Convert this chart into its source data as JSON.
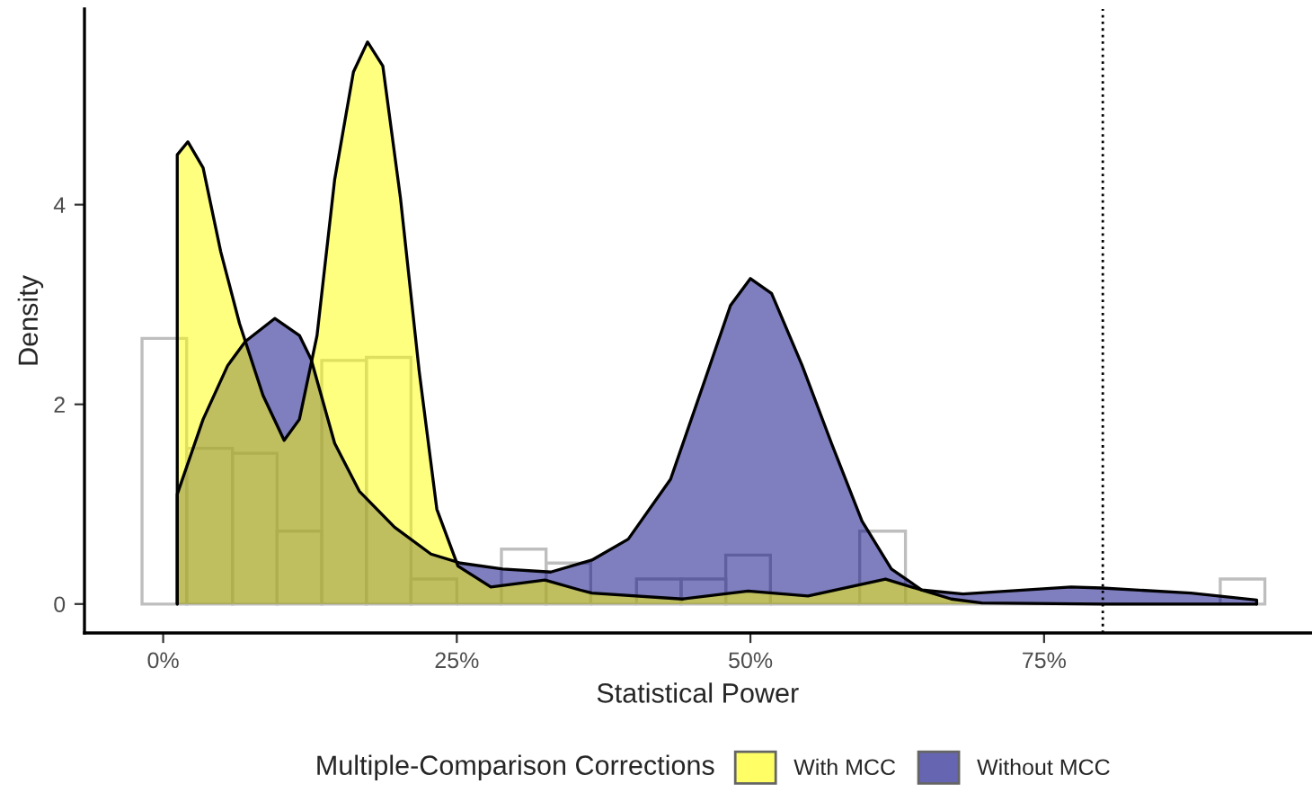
{
  "chart_data": {
    "type": "area",
    "xlabel": "Statistical Power",
    "ylabel": "Density",
    "legend_title": "Multiple-Comparison Corrections",
    "xlim": [
      -0.067,
      0.977
    ],
    "ylim": [
      -0.29,
      5.96
    ],
    "xticks": [
      {
        "value": 0,
        "label": "0%"
      },
      {
        "value": 0.25,
        "label": "25%"
      },
      {
        "value": 0.5,
        "label": "50%"
      },
      {
        "value": 0.75,
        "label": "75%"
      }
    ],
    "yticks": [
      0,
      2,
      4
    ],
    "grid": false,
    "legend": "bottom",
    "series": [
      {
        "type": "histogram",
        "color": "#bebebe",
        "bins": [
          -0.018,
          0.02,
          0.059,
          0.097,
          0.135,
          0.173,
          0.211,
          0.25,
          0.288,
          0.326,
          0.364,
          0.403,
          0.441,
          0.479,
          0.517,
          0.555,
          0.593,
          0.632,
          0.67,
          0.708,
          0.746,
          0.785,
          0.823,
          0.861,
          0.9,
          0.938
        ],
        "values": [
          2.66,
          1.56,
          1.51,
          0.73,
          2.44,
          2.47,
          0.25,
          0,
          0.55,
          0.41,
          0,
          0.25,
          0.25,
          0.49,
          0,
          0,
          0.73,
          0,
          0,
          0,
          0,
          0,
          0,
          0,
          0.25
        ]
      },
      {
        "name": "Without MCC",
        "color": "#000080",
        "x": [
          0.012,
          0.034,
          0.055,
          0.07,
          0.095,
          0.116,
          0.126,
          0.146,
          0.167,
          0.197,
          0.228,
          0.253,
          0.289,
          0.33,
          0.365,
          0.396,
          0.432,
          0.462,
          0.483,
          0.5,
          0.518,
          0.544,
          0.569,
          0.595,
          0.62,
          0.646,
          0.681,
          0.773,
          0.799,
          0.875,
          0.931
        ],
        "values": [
          1.1,
          1.85,
          2.39,
          2.63,
          2.86,
          2.69,
          2.45,
          1.61,
          1.13,
          0.77,
          0.5,
          0.41,
          0.35,
          0.32,
          0.44,
          0.65,
          1.25,
          2.27,
          2.99,
          3.26,
          3.11,
          2.39,
          1.61,
          0.83,
          0.35,
          0.14,
          0.1,
          0.17,
          0.16,
          0.11,
          0.04
        ]
      },
      {
        "name": "With MCC",
        "color": "#ffff00",
        "x": [
          0.012,
          0.021,
          0.034,
          0.049,
          0.065,
          0.085,
          0.103,
          0.116,
          0.131,
          0.146,
          0.162,
          0.174,
          0.187,
          0.202,
          0.218,
          0.233,
          0.251,
          0.279,
          0.325,
          0.355,
          0.365,
          0.442,
          0.498,
          0.549,
          0.615,
          0.671,
          0.697,
          0.8,
          0.931
        ],
        "values": [
          4.5,
          4.63,
          4.37,
          3.53,
          2.81,
          2.09,
          1.64,
          1.85,
          2.69,
          4.25,
          5.33,
          5.63,
          5.39,
          4.07,
          2.33,
          0.95,
          0.38,
          0.17,
          0.24,
          0.14,
          0.11,
          0.05,
          0.13,
          0.08,
          0.25,
          0.05,
          0.01,
          0,
          0
        ]
      }
    ],
    "ref_lines": [
      {
        "axis": "x",
        "value": 0.8,
        "color": "#000000",
        "line_style": "dotted"
      }
    ]
  }
}
